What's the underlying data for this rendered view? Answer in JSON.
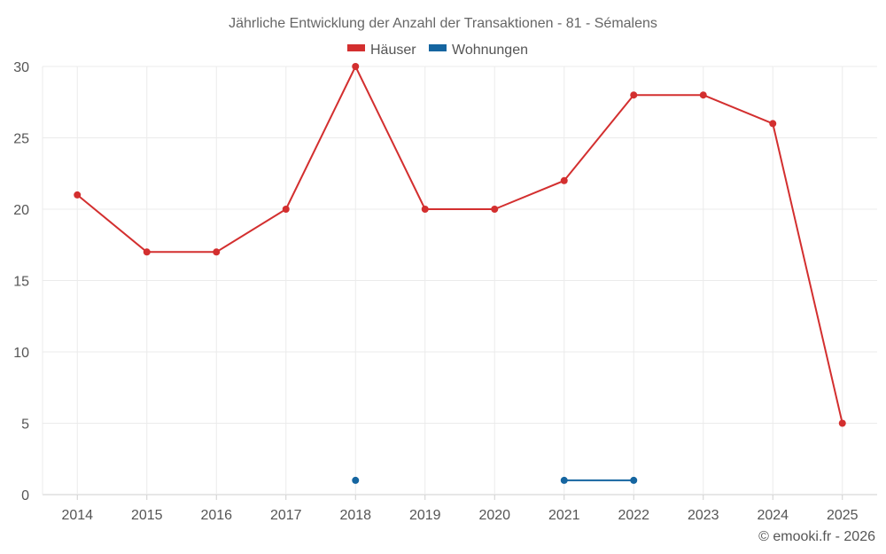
{
  "chart_data": {
    "type": "line",
    "title": "Jährliche Entwicklung der Anzahl der Transaktionen - 81 - Sémalens",
    "xlabel": "",
    "ylabel": "",
    "categories": [
      "2014",
      "2015",
      "2016",
      "2017",
      "2018",
      "2019",
      "2020",
      "2021",
      "2022",
      "2023",
      "2024",
      "2025"
    ],
    "ylim": [
      0,
      30
    ],
    "yticks": [
      "0",
      "5",
      "10",
      "15",
      "20",
      "25",
      "30"
    ],
    "grid": true,
    "legend_position": "top-center",
    "series": [
      {
        "name": "Häuser",
        "color": "#d32f2f",
        "values": [
          21,
          17,
          17,
          20,
          30,
          20,
          20,
          22,
          28,
          28,
          26,
          5
        ]
      },
      {
        "name": "Wohnungen",
        "color": "#1565a0",
        "values": [
          null,
          null,
          null,
          null,
          1,
          null,
          null,
          1,
          1,
          null,
          null,
          null
        ]
      }
    ]
  },
  "credit": "© emooki.fr - 2026"
}
